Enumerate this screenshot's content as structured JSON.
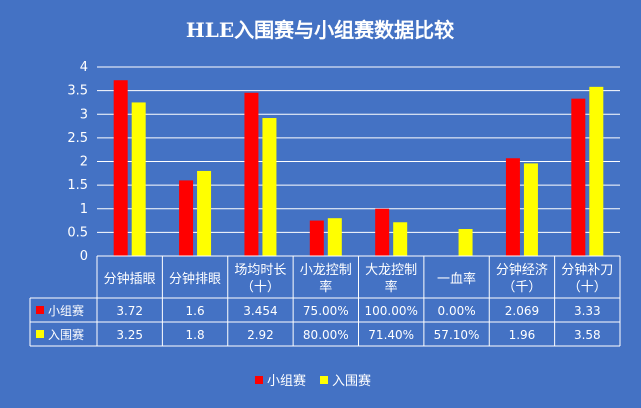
{
  "chart_data": {
    "type": "bar",
    "title": "HLE入围赛与小组赛数据比较",
    "categories": [
      [
        "分钟插眼"
      ],
      [
        "分钟排眼"
      ],
      [
        "场均时长",
        "（十）"
      ],
      [
        "小龙控制",
        "率"
      ],
      [
        "大龙控制",
        "率"
      ],
      [
        "一血率"
      ],
      [
        "分钟经济",
        "（千）"
      ],
      [
        "分钟补刀",
        "（十）"
      ]
    ],
    "y_ticks": [
      "0",
      "0.5",
      "1",
      "1.5",
      "2",
      "2.5",
      "3",
      "3.5",
      "4"
    ],
    "ylim": [
      0,
      4
    ],
    "grid": true,
    "legend_position": "bottom",
    "series": [
      {
        "name": "小组赛",
        "color": "#ff0000",
        "values": [
          3.72,
          1.6,
          3.454,
          0.75,
          1.0,
          0.0,
          2.069,
          3.33
        ],
        "labels": [
          "3.72",
          "1.6",
          "3.454",
          "75.00%",
          "100.00%",
          "0.00%",
          "2.069",
          "3.33"
        ]
      },
      {
        "name": "入围赛",
        "color": "#ffff00",
        "values": [
          3.25,
          1.8,
          2.92,
          0.8,
          0.714,
          0.571,
          1.96,
          3.58
        ],
        "labels": [
          "3.25",
          "1.8",
          "2.92",
          "80.00%",
          "71.40%",
          "57.10%",
          "1.96",
          "3.58"
        ]
      }
    ]
  }
}
